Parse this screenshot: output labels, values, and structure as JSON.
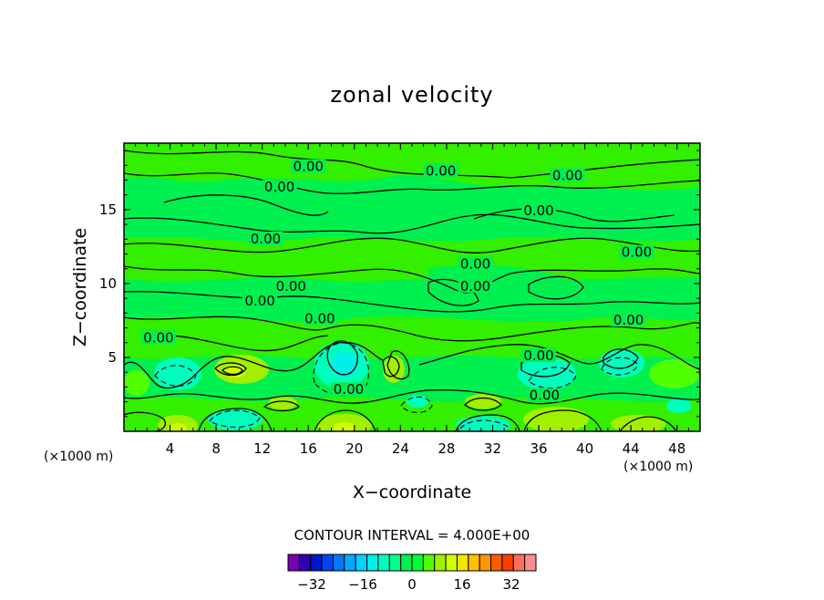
{
  "chart_data": {
    "type": "contour",
    "title": "zonal velocity",
    "xlabel": "X−coordinate",
    "ylabel": "Z−coordinate",
    "x_unit": "(×1000 m)",
    "z_unit": "(×1000 m)",
    "xlim": [
      0,
      50
    ],
    "zlim": [
      0,
      19.5
    ],
    "x_ticks": [
      4,
      8,
      12,
      16,
      20,
      24,
      28,
      32,
      36,
      40,
      44,
      48
    ],
    "x_tick_labels": [
      "4",
      "8",
      "12",
      "16",
      "20",
      "24",
      "28",
      "32",
      "36",
      "40",
      "44",
      "48"
    ],
    "z_ticks": [
      5,
      10,
      15
    ],
    "z_tick_labels": [
      "5",
      "10",
      "15"
    ],
    "contour_interval_text": "CONTOUR INTERVAL = 4.000E+00",
    "contour_interval": 4,
    "contour_labels": [
      {
        "text": "0.00",
        "x": 16,
        "z": 17.8
      },
      {
        "text": "0.00",
        "x": 27.5,
        "z": 17.5
      },
      {
        "text": "0.00",
        "x": 38.5,
        "z": 17.2
      },
      {
        "text": "0.00",
        "x": 13.5,
        "z": 16.4
      },
      {
        "text": "0.00",
        "x": 36,
        "z": 14.8
      },
      {
        "text": "0.00",
        "x": 12.3,
        "z": 12.9
      },
      {
        "text": "0.00",
        "x": 44.5,
        "z": 12
      },
      {
        "text": "0.00",
        "x": 30.5,
        "z": 11.2
      },
      {
        "text": "0.00",
        "x": 30.5,
        "z": 9.7
      },
      {
        "text": "0.00",
        "x": 14.5,
        "z": 9.7
      },
      {
        "text": "0.00",
        "x": 11.8,
        "z": 8.7
      },
      {
        "text": "0.00",
        "x": 17,
        "z": 7.5
      },
      {
        "text": "0.00",
        "x": 43.8,
        "z": 7.4
      },
      {
        "text": "0.00",
        "x": 3,
        "z": 6.2
      },
      {
        "text": "0.00",
        "x": 36,
        "z": 5
      },
      {
        "text": "0.00",
        "x": 19.5,
        "z": 2.7
      },
      {
        "text": "0.00",
        "x": 36.5,
        "z": 2.3
      }
    ],
    "colorbar": {
      "colors": [
        "#7a00b4",
        "#2d00b4",
        "#0014d2",
        "#0046f0",
        "#0078ff",
        "#00aaff",
        "#00d2ff",
        "#00f0e6",
        "#00ffbe",
        "#00ff8c",
        "#00f050",
        "#00ff32",
        "#50ff00",
        "#a0f000",
        "#d2ff00",
        "#f0e600",
        "#ffbe00",
        "#ff9600",
        "#ff5a00",
        "#ff3c00",
        "#ff6e5a",
        "#ff8c8c"
      ],
      "tick_labels": [
        "−32",
        "−16",
        "0",
        "16",
        "32"
      ]
    }
  }
}
